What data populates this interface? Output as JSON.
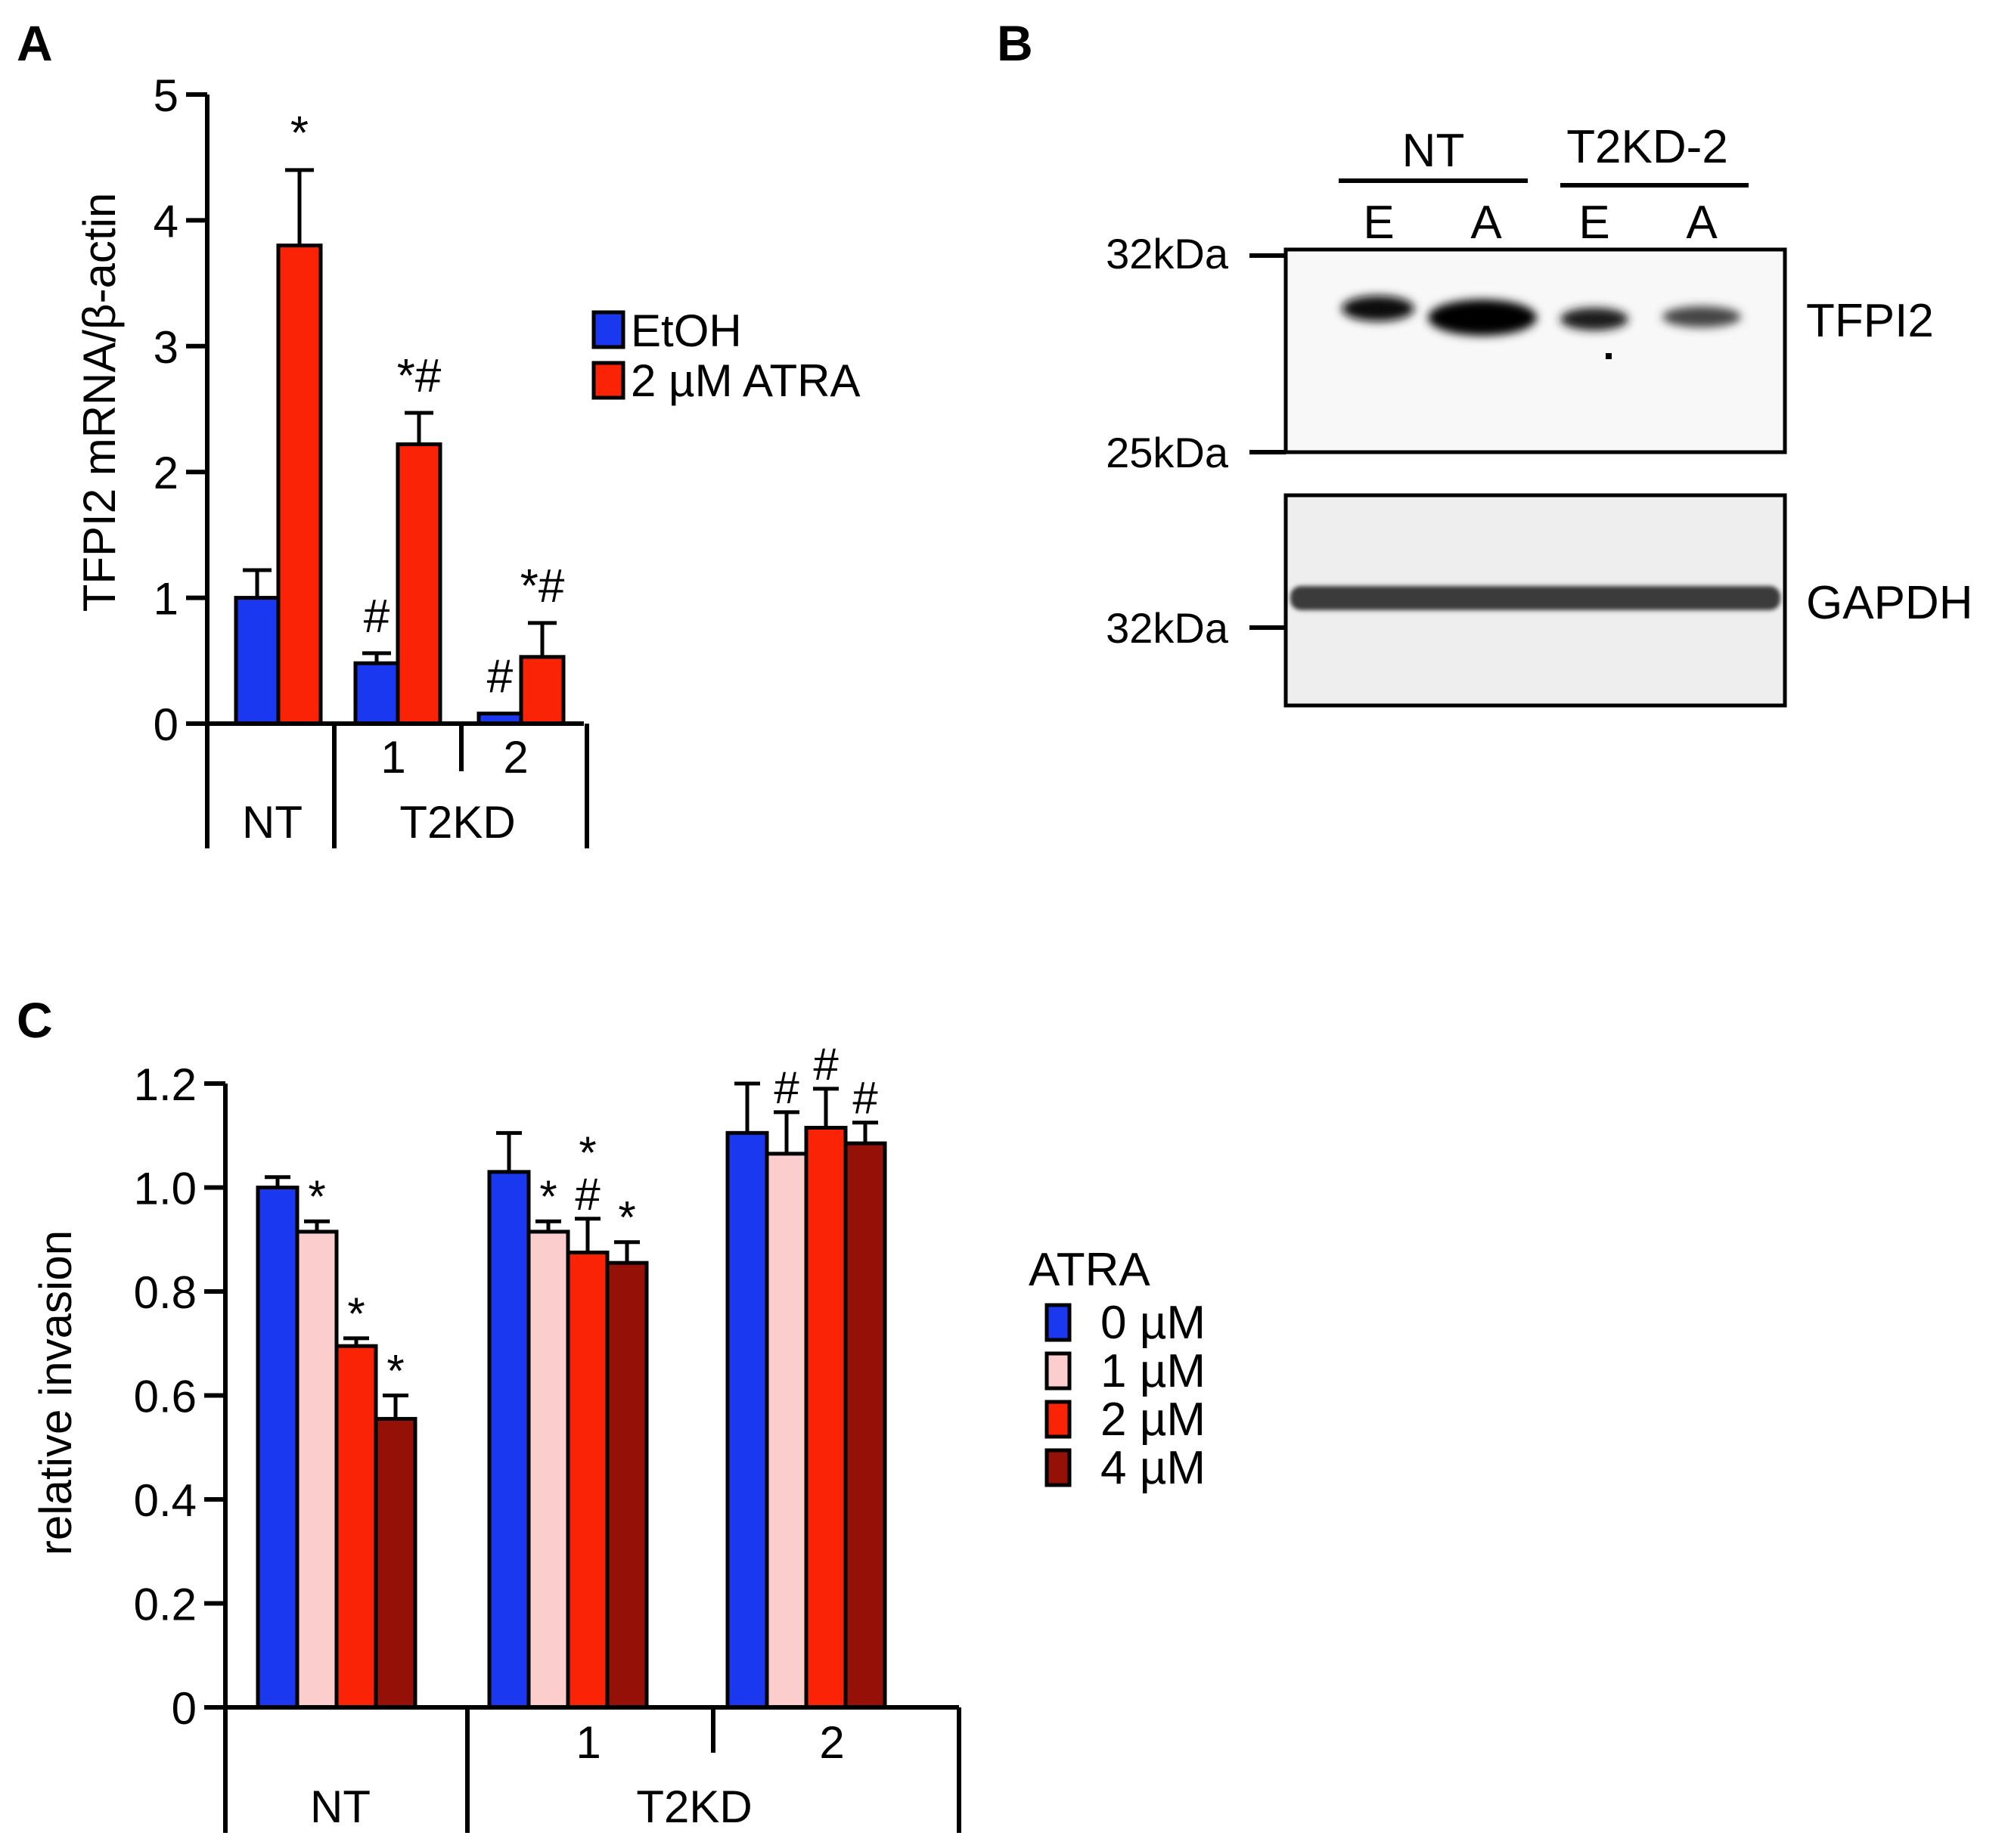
{
  "colors": {
    "etoh": "#1a38f0",
    "atra2": "#fb2306",
    "c0": "#1a38f0",
    "c1": "#fccdcd",
    "c2": "#fb2306",
    "c4": "#951006"
  },
  "panelA": {
    "letter": "A",
    "chart_data": {
      "type": "bar",
      "ylabel": "TFPI2 mRNA/β-actin",
      "ylim": [
        0,
        5
      ],
      "yticks": [
        "0",
        "1",
        "2",
        "3",
        "4",
        "5"
      ],
      "groups": [
        {
          "bars": [
            {
              "series": "EtOH",
              "value": 1.0,
              "err": 0.22,
              "annot": []
            },
            {
              "series": "2 µM ATRA",
              "value": 3.8,
              "err": 0.6,
              "annot": [
                "*"
              ]
            }
          ]
        },
        {
          "bars": [
            {
              "series": "EtOH",
              "value": 0.48,
              "err": 0.08,
              "annot": [
                "#"
              ]
            },
            {
              "series": "2 µM ATRA",
              "value": 2.22,
              "err": 0.25,
              "annot": [
                "*#"
              ]
            }
          ]
        },
        {
          "bars": [
            {
              "series": "EtOH",
              "value": 0.08,
              "err": 0.0,
              "annot": [
                "#"
              ]
            },
            {
              "series": "2 µM ATRA",
              "value": 0.53,
              "err": 0.27,
              "annot": [
                "*#"
              ]
            }
          ]
        }
      ],
      "sub_labels": [
        "1",
        "2"
      ],
      "group_labels": [
        "NT",
        "T2KD"
      ],
      "legend": [
        "EtOH",
        "2 µM ATRA"
      ]
    }
  },
  "panelB": {
    "letter": "B",
    "groups": [
      "NT",
      "T2KD-2"
    ],
    "lanes": [
      "E",
      "A",
      "E",
      "A"
    ],
    "markers_top": [
      "32kDa",
      "25kDa"
    ],
    "marker_bottom": "32kDa",
    "protein_top": "TFPI2",
    "protein_bottom": "GAPDH"
  },
  "panelC": {
    "letter": "C",
    "chart_data": {
      "type": "bar",
      "ylabel": "relative invasion",
      "ylim": [
        0,
        1.2
      ],
      "yticks": [
        "0",
        "0.2",
        "0.4",
        "0.6",
        "0.8",
        "1.0",
        "1.2"
      ],
      "legend_title": "ATRA",
      "legend": [
        "0 µM",
        "1 µM",
        "2 µM",
        "4 µM"
      ],
      "groups": [
        {
          "bars": [
            {
              "value": 1.0,
              "err": 0.02,
              "annot": []
            },
            {
              "value": 0.915,
              "err": 0.02,
              "annot": [
                "*"
              ]
            },
            {
              "value": 0.695,
              "err": 0.015,
              "annot": [
                "*"
              ]
            },
            {
              "value": 0.555,
              "err": 0.045,
              "annot": [
                "*"
              ]
            }
          ]
        },
        {
          "bars": [
            {
              "value": 1.03,
              "err": 0.075,
              "annot": []
            },
            {
              "value": 0.915,
              "err": 0.02,
              "annot": [
                "*"
              ]
            },
            {
              "value": 0.875,
              "err": 0.065,
              "annot": [
                "*",
                "#"
              ]
            },
            {
              "value": 0.855,
              "err": 0.04,
              "annot": [
                "*"
              ]
            }
          ]
        },
        {
          "bars": [
            {
              "value": 1.105,
              "err": 0.095,
              "annot": []
            },
            {
              "value": 1.065,
              "err": 0.08,
              "annot": [
                "#"
              ]
            },
            {
              "value": 1.115,
              "err": 0.075,
              "annot": [
                "#"
              ]
            },
            {
              "value": 1.085,
              "err": 0.04,
              "annot": [
                "#"
              ]
            }
          ]
        }
      ],
      "sub_labels": [
        "1",
        "2"
      ],
      "group_labels": [
        "NT",
        "T2KD"
      ]
    }
  }
}
